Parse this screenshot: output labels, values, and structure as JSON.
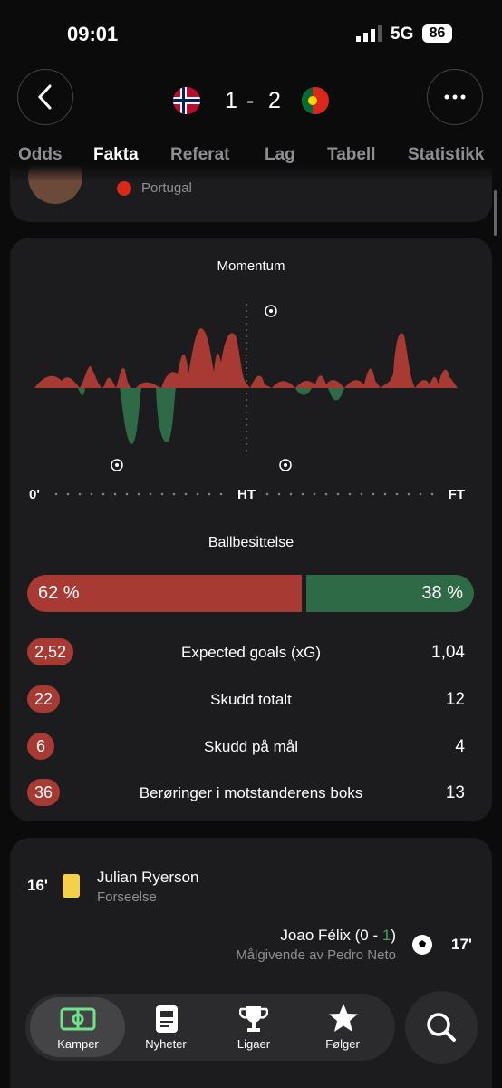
{
  "status_bar": {
    "time": "09:01",
    "network": "5G",
    "battery": "86"
  },
  "header": {
    "score_home": "1",
    "separator": "-",
    "score_away": "2"
  },
  "tabs": [
    "Odds",
    "Fakta",
    "Referat",
    "Lag",
    "Tabell",
    "Statistikk"
  ],
  "player_card": {
    "country": "Portugal"
  },
  "momentum": {
    "title": "Momentum",
    "labels": [
      "0'",
      "HT",
      "FT"
    ]
  },
  "possession": {
    "title": "Ballbesittelse",
    "home": {
      "value": 62,
      "label": "62 %"
    },
    "away": {
      "value": 38,
      "label": "38 %"
    }
  },
  "stats": [
    {
      "home": "2,52",
      "label": "Expected goals (xG)",
      "away": "1,04"
    },
    {
      "home": "22",
      "label": "Skudd totalt",
      "away": "12"
    },
    {
      "home": "6",
      "label": "Skudd på mål",
      "away": "4"
    },
    {
      "home": "36",
      "label": "Berøringer i motstanderens boks",
      "away": "13"
    }
  ],
  "events": [
    {
      "minute": "16'",
      "player": "Julian Ryerson",
      "detail": "Forseelse"
    },
    {
      "minute": "17'",
      "player": "Joao Félix",
      "score_open": "(0 - ",
      "score_goal": "1",
      "score_close": ")",
      "detail": "Målgivende av Pedro Neto"
    }
  ],
  "nav": [
    "Kamper",
    "Nyheter",
    "Ligaer",
    "Følger"
  ]
}
